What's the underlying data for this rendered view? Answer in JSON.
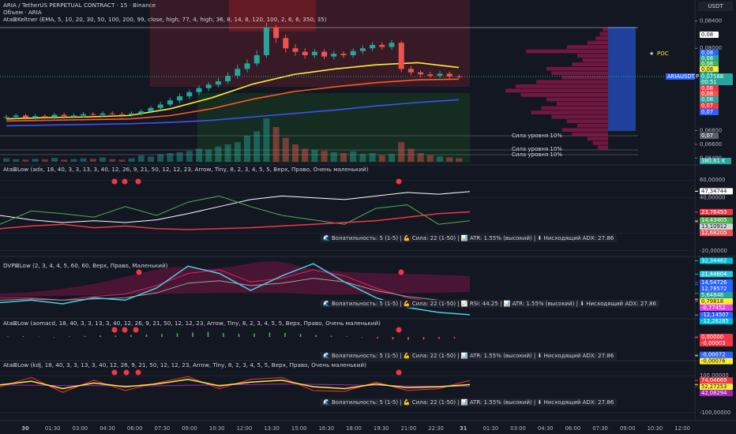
{
  "header": {
    "symbol": "ARIA / TetherUS PERPETUAL CONTRACT · 15 · Binance",
    "volume": "Объем · ARIA",
    "keltner": "Ata⊠Keltner (EMA, 5, 10, 20, 30, 50, 100, 200, 99, close, high, 77, 4, high, 36, 8, 14, 8, 120, 100, 2, 6, 6, 350, 35)"
  },
  "main": {
    "currency": "USDT",
    "ylim": [
      0.0638,
      0.0844
    ],
    "price_ticks": [
      {
        "value": 0.084,
        "label": "0,08400"
      },
      {
        "value": 0.08,
        "label": "0,08000"
      },
      {
        "value": 0.068,
        "label": "0,06800"
      },
      {
        "value": 0.066,
        "label": "0,06600"
      },
      {
        "value": 0.064,
        "label": "0,06400"
      }
    ],
    "candles": [
      [
        0.0699,
        0.0703,
        0.0696,
        0.07
      ],
      [
        0.07,
        0.0705,
        0.0697,
        0.0702
      ],
      [
        0.0702,
        0.0705,
        0.0696,
        0.0699
      ],
      [
        0.0699,
        0.0704,
        0.0696,
        0.0701
      ],
      [
        0.0701,
        0.0704,
        0.0697,
        0.07
      ],
      [
        0.07,
        0.0706,
        0.0697,
        0.0703
      ],
      [
        0.0703,
        0.0706,
        0.0698,
        0.0701
      ],
      [
        0.0701,
        0.0705,
        0.0698,
        0.0702
      ],
      [
        0.0702,
        0.0707,
        0.0699,
        0.0704
      ],
      [
        0.0704,
        0.0707,
        0.07,
        0.0703
      ],
      [
        0.0703,
        0.0708,
        0.07,
        0.0705
      ],
      [
        0.0705,
        0.0708,
        0.0701,
        0.0704
      ],
      [
        0.0704,
        0.0707,
        0.07,
        0.0703
      ],
      [
        0.0703,
        0.0708,
        0.07,
        0.0705
      ],
      [
        0.0705,
        0.0711,
        0.0702,
        0.0708
      ],
      [
        0.0708,
        0.0716,
        0.0705,
        0.0713
      ],
      [
        0.0713,
        0.0722,
        0.071,
        0.0718
      ],
      [
        0.0718,
        0.0728,
        0.0715,
        0.0724
      ],
      [
        0.0724,
        0.0734,
        0.072,
        0.073
      ],
      [
        0.073,
        0.074,
        0.0726,
        0.0736
      ],
      [
        0.0736,
        0.0746,
        0.0732,
        0.0742
      ],
      [
        0.0742,
        0.0751,
        0.0738,
        0.0747
      ],
      [
        0.0747,
        0.0757,
        0.0743,
        0.0752
      ],
      [
        0.0752,
        0.0765,
        0.0748,
        0.076
      ],
      [
        0.076,
        0.0776,
        0.0756,
        0.077
      ],
      [
        0.077,
        0.0784,
        0.0765,
        0.0778
      ],
      [
        0.0778,
        0.0797,
        0.0774,
        0.079
      ],
      [
        0.079,
        0.0838,
        0.0786,
        0.083
      ],
      [
        0.083,
        0.0834,
        0.0808,
        0.0815
      ],
      [
        0.0815,
        0.082,
        0.0794,
        0.08
      ],
      [
        0.08,
        0.0806,
        0.0789,
        0.0795
      ],
      [
        0.0795,
        0.08,
        0.0785,
        0.079
      ],
      [
        0.079,
        0.0799,
        0.0786,
        0.0795
      ],
      [
        0.0795,
        0.0799,
        0.0784,
        0.0788
      ],
      [
        0.0788,
        0.0796,
        0.0784,
        0.0792
      ],
      [
        0.0792,
        0.0796,
        0.0786,
        0.079
      ],
      [
        0.079,
        0.08,
        0.0786,
        0.0796
      ],
      [
        0.0796,
        0.0804,
        0.0792,
        0.08
      ],
      [
        0.08,
        0.0809,
        0.0796,
        0.0805
      ],
      [
        0.0805,
        0.0809,
        0.0798,
        0.0802
      ],
      [
        0.0802,
        0.0812,
        0.0798,
        0.0808
      ],
      [
        0.0808,
        0.0811,
        0.0765,
        0.077
      ],
      [
        0.077,
        0.0774,
        0.0761,
        0.0765
      ],
      [
        0.0765,
        0.0768,
        0.0758,
        0.0762
      ],
      [
        0.0762,
        0.0766,
        0.0757,
        0.076
      ],
      [
        0.076,
        0.0767,
        0.0757,
        0.0763
      ],
      [
        0.0763,
        0.0766,
        0.0756,
        0.0759
      ],
      [
        0.0759,
        0.0762,
        0.0756,
        0.07588
      ]
    ],
    "volume": [
      8,
      6,
      5,
      7,
      6,
      9,
      5,
      6,
      8,
      7,
      10,
      6,
      5,
      8,
      15,
      12,
      18,
      20,
      22,
      25,
      30,
      28,
      35,
      40,
      45,
      60,
      70,
      100,
      80,
      55,
      40,
      30,
      28,
      25,
      22,
      20,
      24,
      18,
      20,
      15,
      18,
      45,
      30,
      20,
      15,
      12,
      10,
      8
    ],
    "emas": [
      {
        "color": "#ffeb3b",
        "values": [
          0.0697,
          0.0699,
          0.07,
          0.0702,
          0.0712,
          0.0728,
          0.0748,
          0.0762,
          0.077,
          0.0776,
          0.0779,
          0.0772
        ]
      },
      {
        "color": "#ff5722",
        "values": [
          0.0694,
          0.0695,
          0.0696,
          0.0697,
          0.0702,
          0.0712,
          0.0726,
          0.0737,
          0.0744,
          0.075,
          0.0754,
          0.0755
        ]
      },
      {
        "color": "#3f51f5",
        "values": [
          0.0687,
          0.0688,
          0.0689,
          0.069,
          0.0692,
          0.0695,
          0.07,
          0.0705,
          0.071,
          0.0716,
          0.0721,
          0.0725
        ]
      }
    ],
    "profile": [
      5,
      8,
      12,
      20,
      40,
      80,
      30,
      25,
      35,
      60,
      55,
      45,
      70,
      90,
      100,
      85,
      60,
      50,
      65,
      75,
      55,
      40,
      30,
      45,
      35,
      20,
      15,
      10
    ],
    "badges": [
      {
        "label": "0.08",
        "color": "#ffffff"
      },
      {
        "label": "0,08",
        "color": "#2962ff"
      },
      {
        "label": "0,08",
        "color": "#26a69a"
      },
      {
        "label": "0,08",
        "color": "#4caf50"
      },
      {
        "label": "0,08",
        "color": "#ffeb3b"
      },
      {
        "label": "0,08",
        "color": "#089981"
      },
      {
        "label": "0,08",
        "color": "#f23645"
      },
      {
        "label": "0,08",
        "color": "#ef5350"
      },
      {
        "label": "0,08",
        "color": "#26a69a"
      },
      {
        "label": "0,07",
        "color": "#f23645"
      },
      {
        "label": "0,07",
        "color": "#2962ff"
      },
      {
        "label": "0,07",
        "color": "#5d606b"
      }
    ],
    "symbol_badge": "ARIAUSDT.P",
    "last_price": {
      "value": 0.07588,
      "label": "0,07588"
    },
    "countdown": "00:51",
    "volume_badge": "380,61 K",
    "level_labels": [
      "Сила уровня 10%",
      "Сила уровня 10%",
      "Сила уровня 10%"
    ],
    "poc": "POC"
  },
  "panes": [
    {
      "title": "Ata⊠Low (adx, 18, 40, 3, 3, 13, 3, 40, 12, 26, 9, 21, 50, 12, 12, 23, Arrow, Tiny, 8, 2, 3, 4, 5, 5, Верх, Право, Очень маленький)",
      "status": "🌊 Волатильность: 5 (1-5)  |  💪 Сила: 22 (1-50)  |  📊 ATR: 1.55% (высокий)  |  ⬇ Нисходящий ADX: 27.86",
      "ylim": [
        -22,
        62
      ],
      "ticks": [
        {
          "value": 60,
          "label": "60,00000"
        },
        {
          "value": 40,
          "label": "40,00000"
        },
        {
          "value": 0,
          "label": "0,00000"
        },
        {
          "value": -20,
          "label": "-20,00000"
        }
      ],
      "badges": [
        {
          "value": 47.34744,
          "label": "47,34744",
          "color": "#ffffff"
        },
        {
          "value": 23.76493,
          "label": "23,76493",
          "color": "#f23645"
        },
        {
          "value": 14.43405,
          "label": "14,43405",
          "color": "#4caf50"
        },
        {
          "value": 13.10912,
          "label": "13,10912",
          "color": "#d1d4dc"
        },
        {
          "value": 12.68205,
          "label": "12,68205",
          "color": "#ef5350"
        }
      ],
      "lines": [
        {
          "color": "#ffffff",
          "values": [
            20,
            15,
            12,
            14,
            12,
            15,
            22,
            30,
            38,
            42,
            40,
            38,
            42,
            46,
            44,
            47
          ]
        },
        {
          "color": "#4caf50",
          "values": [
            10,
            25,
            22,
            18,
            30,
            20,
            35,
            42,
            30,
            20,
            15,
            10,
            28,
            32,
            10,
            14
          ]
        },
        {
          "color": "#f23645",
          "values": [
            5,
            8,
            10,
            6,
            8,
            5,
            4,
            5,
            6,
            8,
            10,
            12,
            14,
            18,
            22,
            24
          ]
        }
      ]
    },
    {
      "title": "DVP⊠Low (2, 3, 4, 4, 5, 60, 60, Верх, Право, Маленький)",
      "status": "🌊 Волатильность: 5 (1-5)  |  💪 Сила: 22 (1-50)  |  📈 RSI: 44.25  |  📊 ATR: 1.55% (высокий)  |  ⬇ Нисходящий ADX: 27.86",
      "ylim": [
        -14,
        34
      ],
      "ticks": [],
      "badges": [
        {
          "value": 32.34482,
          "label": "32,34482",
          "color": "#00bcd4"
        },
        {
          "value": 21.44604,
          "label": "21,44604",
          "color": "#26c6da"
        },
        {
          "value": 14.54726,
          "label": "14,54726",
          "color": "#2962ff"
        },
        {
          "value": 12.78572,
          "label": "12,78572",
          "color": "#2962ff"
        },
        {
          "value": 5.64848,
          "label": "5,64848",
          "color": "#26a69a"
        },
        {
          "value": 0.79818,
          "label": "0,79818",
          "color": "#ffeb3b"
        },
        {
          "value": -0.77452,
          "label": "-0,77452",
          "color": "#e040fb"
        },
        {
          "value": -12.14507,
          "label": "-12,14507",
          "color": "#2962ff"
        },
        {
          "value": -12.26285,
          "label": "-12,26285",
          "color": "#00bcd4"
        }
      ],
      "lines": [
        {
          "color": "#e91e63",
          "values": [
            2,
            2,
            0,
            3,
            5,
            12,
            22,
            25,
            15,
            18,
            25,
            20,
            10,
            2,
            -2,
            -5
          ]
        },
        {
          "color": "#9e9e9e",
          "values": [
            0,
            1,
            0,
            1,
            2,
            6,
            14,
            16,
            12,
            14,
            18,
            15,
            8,
            3,
            0,
            -2
          ]
        },
        {
          "color": "#4dd0e1",
          "values": [
            -2,
            0,
            -3,
            2,
            0,
            10,
            28,
            22,
            8,
            20,
            30,
            15,
            2,
            -6,
            -10,
            -12
          ]
        }
      ]
    },
    {
      "title": "Ata⊠Low (aomacd, 18, 40, 3, 3, 13, 3, 40, 12, 26, 9, 21, 50, 12, 12, 23, Arrow, Tiny, 8, 2, 3, 4, 5, 5, Верх, Право, Очень маленький)",
      "status": "🌊 Волатильность: 5 (1-5)  |  💪 Сила: 22 (1-50)  |  📊 ATR: 1.55% (высокий)  |  ⬇ Нисходящий ADX: 27.86",
      "ylim": [
        -0.00089,
        0.0007
      ],
      "ticks": [],
      "badges": [
        {
          "value": 0,
          "label": "0,00000",
          "color": "#f23645"
        },
        {
          "value": -3e-05,
          "label": "-0,00003",
          "color": "#f23645"
        },
        {
          "value": -0.00072,
          "label": "-0,00072",
          "color": "#2962ff"
        },
        {
          "value": -0.00076,
          "label": "-0,00076",
          "color": "#ffeb3b"
        }
      ],
      "histogram": [
        2e-05,
        3e-05,
        1e-05,
        -1e-05,
        2e-05,
        4e-05,
        6e-05,
        5e-05,
        8e-05,
        0.0001,
        0.00012,
        0.00015,
        0.00018,
        0.0002,
        0.00016,
        0.00012,
        0.00014,
        0.00018,
        0.00016,
        0.00012,
        8e-05,
        5e-05,
        2e-05,
        -2e-05,
        -6e-05,
        -0.0001,
        -0.00012,
        -0.0001,
        -8e-05,
        -6e-05
      ],
      "lines": []
    },
    {
      "title": "Ata⊠Low (kdj, 18, 40, 3, 3, 13, 3, 40, 12, 26, 9, 21, 50, 12, 12, 23, Arrow, Tiny, 8, 2, 3, 4, 5, 5, Верх, Право, Очень маленький)",
      "status": "🌊 Волатильность: 5 (1-5)  |  💪 Сила: 22 (1-50)  |  📊 ATR: 1.55% (высокий)  |  ⬇ Нисходящий ADX: 27.86",
      "ylim": [
        -130,
        177
      ],
      "ticks": [
        {
          "value": 100,
          "label": "100,00000"
        },
        {
          "value": -100,
          "label": "-100,00000"
        }
      ],
      "badges": [
        {
          "value": 74.04669,
          "label": "74,04669",
          "color": "#f23645"
        },
        {
          "value": 52.27253,
          "label": "52,27253",
          "color": "#ffeb3b"
        },
        {
          "value": 42.08294,
          "label": "42,08294",
          "color": "#9c27b0"
        }
      ],
      "lines": [
        {
          "color": "#9c27b0",
          "values": [
            50,
            48,
            47,
            46,
            45,
            45,
            48,
            50,
            52,
            55,
            53,
            50,
            48,
            44,
            42,
            42
          ]
        },
        {
          "color": "#f23645",
          "values": [
            40,
            90,
            10,
            75,
            20,
            60,
            95,
            30,
            80,
            90,
            20,
            15,
            65,
            20,
            30,
            74
          ]
        },
        {
          "color": "#ffeb3b",
          "values": [
            50,
            70,
            30,
            60,
            40,
            55,
            80,
            45,
            65,
            75,
            40,
            30,
            55,
            35,
            40,
            52
          ]
        }
      ]
    }
  ],
  "time_axis": [
    "30",
    "01:30",
    "03:00",
    "04:30",
    "06:00",
    "07:30",
    "09:00",
    "10:30",
    "12:00",
    "13:30",
    "15:00",
    "16:30",
    "18:00",
    "19:30",
    "21:00",
    "22:30",
    "31",
    "01:30",
    "03:00",
    "04:30",
    "06:00",
    "07:30",
    "09:00",
    "10:30",
    "12:00"
  ]
}
